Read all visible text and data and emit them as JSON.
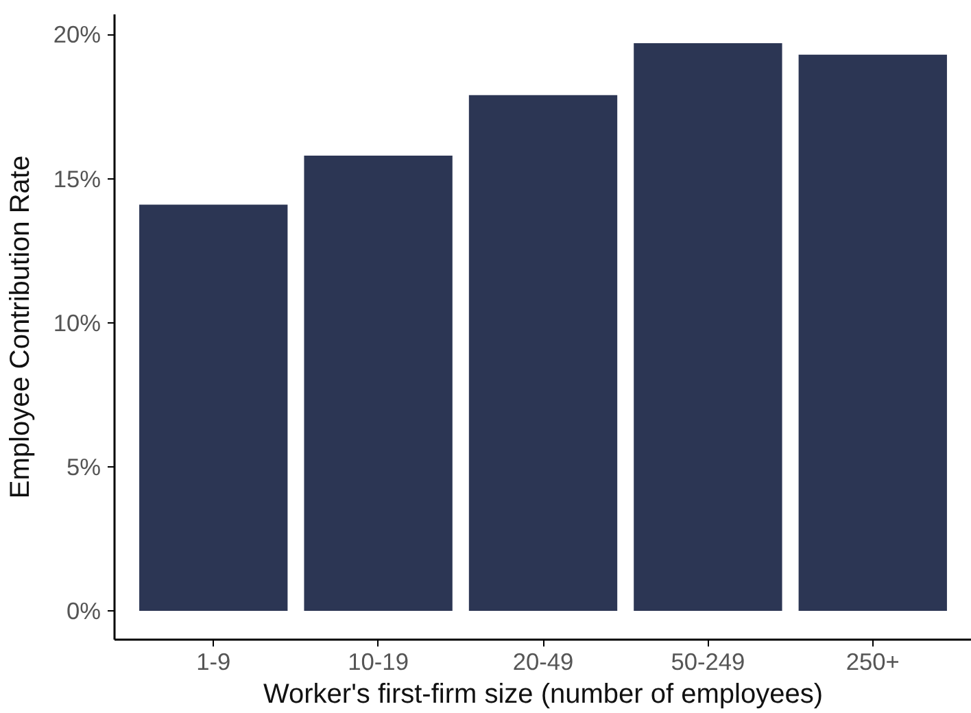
{
  "chart_data": {
    "type": "bar",
    "xlabel": "Worker's first-firm size (number of employees)",
    "ylabel": "Employee Contribution Rate",
    "categories": [
      "1-9",
      "10-19",
      "20-49",
      "50-249",
      "250+"
    ],
    "values": [
      14.1,
      15.8,
      17.9,
      19.7,
      19.3
    ],
    "color": "#2c3654",
    "ylim": [
      -1,
      20.7
    ],
    "yticks": [
      {
        "value": 0,
        "label": "0%"
      },
      {
        "value": 5,
        "label": "5%"
      },
      {
        "value": 10,
        "label": "10%"
      },
      {
        "value": 15,
        "label": "15%"
      },
      {
        "value": 20,
        "label": "20%"
      }
    ],
    "grid": false
  }
}
